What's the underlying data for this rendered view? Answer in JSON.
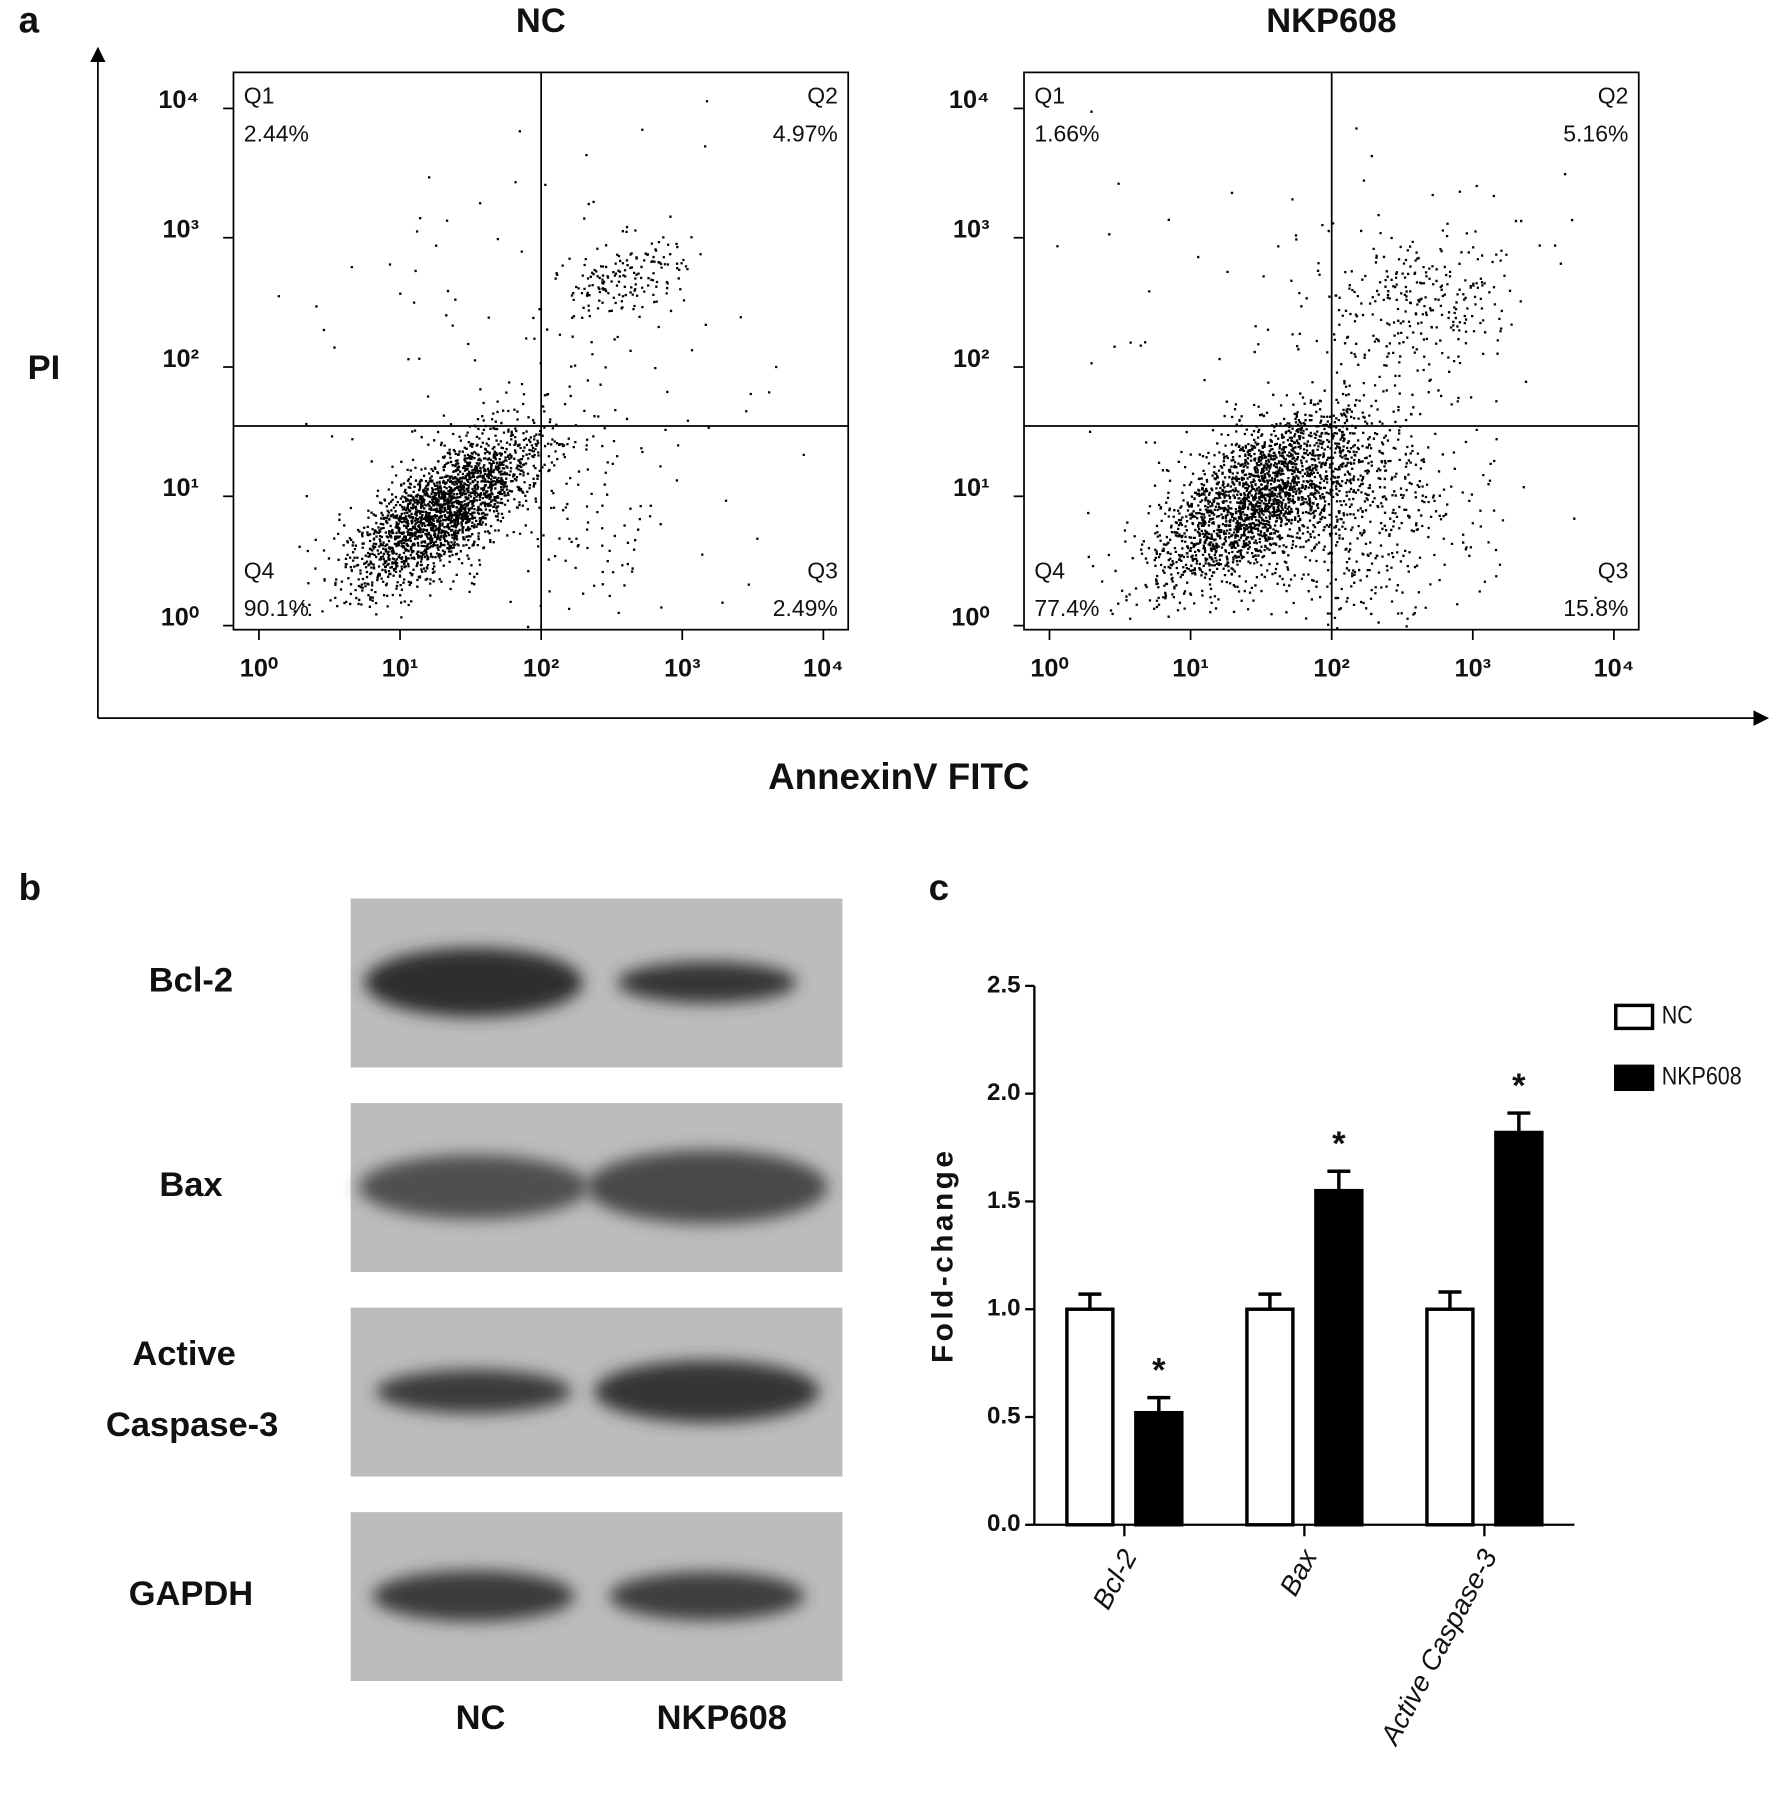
{
  "chart_data": [
    {
      "type": "scatter",
      "panel": "a",
      "title": "NC",
      "xlabel": "AnnexinV FITC",
      "ylabel": "PI",
      "xscale": "log",
      "yscale": "log",
      "xlim": [
        0.66,
        15000
      ],
      "ylim": [
        0.93,
        19000
      ],
      "xticks": [
        {
          "value": 1,
          "label": "10⁰"
        },
        {
          "value": 10,
          "label": "10¹"
        },
        {
          "value": 100,
          "label": "10²"
        },
        {
          "value": 1000,
          "label": "10³"
        },
        {
          "value": 10000,
          "label": "10⁴"
        }
      ],
      "yticks": [
        {
          "value": 1,
          "label": "10⁰"
        },
        {
          "value": 10,
          "label": "10¹"
        },
        {
          "value": 100,
          "label": "10²"
        },
        {
          "value": 1000,
          "label": "10³"
        },
        {
          "value": 10000,
          "label": "10⁴"
        }
      ],
      "gates": {
        "x": 100,
        "y": 35
      },
      "quadrants": [
        "Q1",
        "Q2",
        "Q3",
        "Q4"
      ],
      "values": [
        2.44,
        4.97,
        2.49,
        90.1
      ],
      "value_labels": [
        "2.44%",
        "4.97%",
        "2.49%",
        "90.1%"
      ]
    },
    {
      "type": "scatter",
      "title": "NKP608",
      "xscale": "log",
      "yscale": "log",
      "xlim": [
        0.66,
        15000
      ],
      "ylim": [
        0.93,
        19000
      ],
      "xticks": [
        {
          "value": 1,
          "label": "10⁰"
        },
        {
          "value": 10,
          "label": "10¹"
        },
        {
          "value": 100,
          "label": "10²"
        },
        {
          "value": 1000,
          "label": "10³"
        },
        {
          "value": 10000,
          "label": "10⁴"
        }
      ],
      "yticks": [
        {
          "value": 1,
          "label": "10⁰"
        },
        {
          "value": 10,
          "label": "10¹"
        },
        {
          "value": 100,
          "label": "10²"
        },
        {
          "value": 1000,
          "label": "10³"
        },
        {
          "value": 10000,
          "label": "10⁴"
        }
      ],
      "gates": {
        "x": 100,
        "y": 35
      },
      "quadrants": [
        "Q1",
        "Q2",
        "Q3",
        "Q4"
      ],
      "values": [
        1.66,
        5.16,
        15.8,
        77.4
      ],
      "value_labels": [
        "1.66%",
        "5.16%",
        "15.8%",
        "77.4%"
      ]
    },
    {
      "type": "bar",
      "panel": "c",
      "ylabel": "Fold-change",
      "categories": [
        "Bcl-2",
        "Bax",
        "Active Caspase-3"
      ],
      "series": [
        {
          "name": "NC",
          "color": "#ffffff",
          "values": [
            1.0,
            1.0,
            1.0
          ],
          "errors": [
            0.07,
            0.07,
            0.08
          ]
        },
        {
          "name": "NKP608",
          "color": "#000000",
          "values": [
            0.52,
            1.55,
            1.82
          ],
          "errors": [
            0.07,
            0.09,
            0.09
          ],
          "markers": [
            "*",
            "*",
            "*"
          ]
        }
      ],
      "ylim": [
        0,
        2.5
      ],
      "yticks": [
        {
          "value": 0,
          "label": "0.0"
        },
        0.5,
        {
          "value": 1,
          "label": "1.0"
        },
        1.5,
        {
          "value": 2,
          "label": "2.0"
        },
        2.5
      ],
      "legend": "upper right"
    }
  ],
  "blot": {
    "panel": "b",
    "rows": [
      {
        "lines": [
          "Bcl-2"
        ]
      },
      {
        "lines": [
          "Bax"
        ]
      },
      {
        "lines": [
          "Active",
          "Caspase-3"
        ]
      },
      {
        "lines": [
          "GAPDH"
        ]
      }
    ],
    "lanes": [
      "NC",
      "NKP608"
    ]
  }
}
